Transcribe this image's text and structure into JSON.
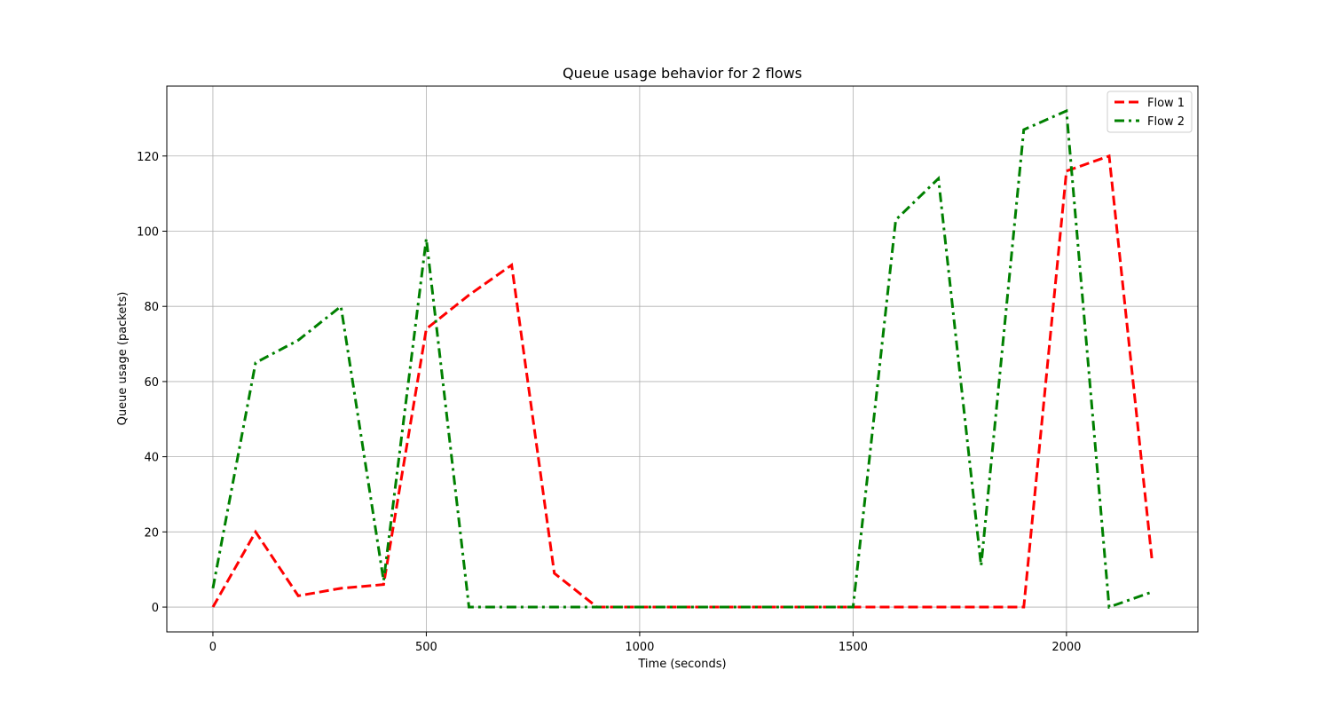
{
  "chart_data": {
    "type": "line",
    "title": "Queue usage behavior for 2 flows",
    "xlabel": "Time (seconds)",
    "ylabel": "Queue usage (packets)",
    "xlim": [
      -108,
      2308
    ],
    "ylim": [
      -6.6,
      138.6
    ],
    "xticks": [
      0,
      500,
      1000,
      1500,
      2000
    ],
    "yticks": [
      0,
      20,
      40,
      60,
      80,
      100,
      120
    ],
    "grid": true,
    "legend_position": "top-right",
    "x": [
      0,
      100,
      200,
      300,
      400,
      500,
      600,
      700,
      800,
      900,
      1000,
      1100,
      1200,
      1300,
      1400,
      1500,
      1600,
      1700,
      1800,
      1900,
      2000,
      2100,
      2200
    ],
    "series": [
      {
        "name": "Flow 1",
        "color": "#ff0000",
        "dash": "dashed",
        "values": [
          0,
          20,
          3,
          5,
          6,
          74,
          83,
          91,
          9,
          0,
          0,
          0,
          0,
          0,
          0,
          0,
          0,
          0,
          0,
          0,
          116,
          120,
          13
        ]
      },
      {
        "name": "Flow 2",
        "color": "#008000",
        "dash": "dashdot",
        "values": [
          5,
          65,
          71,
          80,
          7,
          98,
          0,
          0,
          0,
          0,
          0,
          0,
          0,
          0,
          0,
          0,
          103,
          114,
          11,
          127,
          132,
          0,
          4
        ]
      }
    ]
  }
}
